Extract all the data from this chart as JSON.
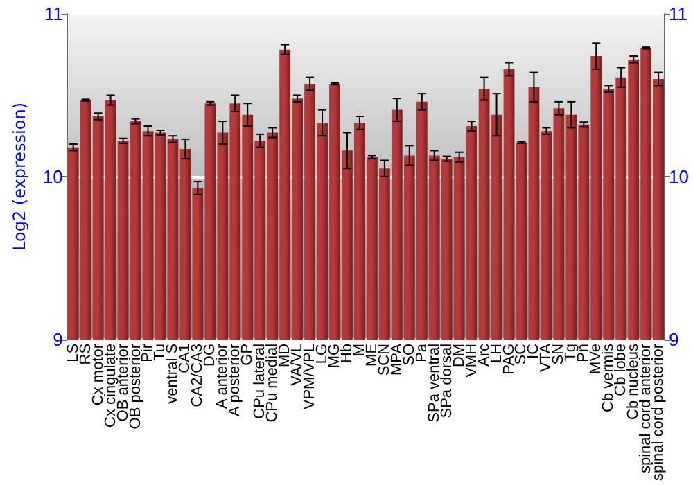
{
  "chart_data": {
    "type": "bar",
    "ylabel": "Log2 (expression)",
    "categories": [
      "LS",
      "RS",
      "Cx motor",
      "Cx cingulate",
      "OB anterior",
      "OB posterior",
      "Pir",
      "Tu",
      "ventral S",
      "CA1",
      "CA2/CA3",
      "DG",
      "A anterior",
      "A posterior",
      "GP",
      "CPu lateral",
      "CPu medial",
      "MD",
      "VA/VL",
      "VPM/VPL",
      "LG",
      "MG",
      "Hb",
      "M",
      "ME",
      "SCN",
      "MPA",
      "SO",
      "Pa",
      "SPa ventral",
      "SPa dorsal",
      "DM",
      "VMH",
      "Arc",
      "LH",
      "PAG",
      "SC",
      "IC",
      "VTA",
      "SN",
      "Tg",
      "Pn",
      "MVe",
      "Cb vermis",
      "Cb lobe",
      "Cb nucleus",
      "spinal cord anterior",
      "spinal cord posterior"
    ],
    "values": [
      10.18,
      10.47,
      10.37,
      10.47,
      10.22,
      10.34,
      10.28,
      10.27,
      10.23,
      10.17,
      9.93,
      10.45,
      10.27,
      10.45,
      10.38,
      10.22,
      10.27,
      10.78,
      10.48,
      10.57,
      10.33,
      10.57,
      10.16,
      10.33,
      10.12,
      10.05,
      10.41,
      10.13,
      10.46,
      10.13,
      10.11,
      10.12,
      10.31,
      10.54,
      10.38,
      10.66,
      10.21,
      10.55,
      10.28,
      10.42,
      10.38,
      10.32,
      10.74,
      10.54,
      10.61,
      10.72,
      10.79,
      10.6
    ],
    "errors": [
      0.02,
      0.005,
      0.02,
      0.03,
      0.015,
      0.015,
      0.03,
      0.015,
      0.02,
      0.06,
      0.04,
      0.01,
      0.07,
      0.05,
      0.07,
      0.04,
      0.03,
      0.03,
      0.02,
      0.04,
      0.08,
      0.005,
      0.11,
      0.04,
      0.01,
      0.05,
      0.07,
      0.06,
      0.05,
      0.03,
      0.015,
      0.03,
      0.03,
      0.07,
      0.13,
      0.04,
      0.005,
      0.09,
      0.02,
      0.04,
      0.08,
      0.015,
      0.08,
      0.02,
      0.06,
      0.02,
      0.005,
      0.04
    ],
    "color": "#b3393a",
    "ylim": [
      9,
      11
    ],
    "yticks": [
      9,
      10,
      11
    ],
    "y2lim": [
      9,
      11
    ],
    "y2ticks": [
      9,
      10,
      11
    ],
    "grid": "y"
  }
}
